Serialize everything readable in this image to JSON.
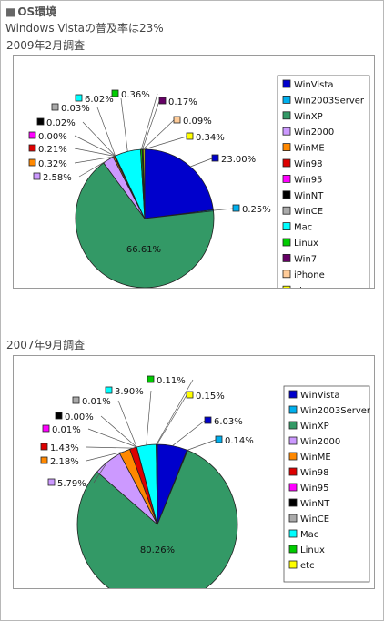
{
  "header": {
    "section_marker": "■",
    "section_title": "OS環境",
    "subtitle": "Windows Vistaの普及率は23%"
  },
  "chart_data": [
    {
      "type": "pie",
      "title": "2009年2月調査",
      "start_angle_deg": 0,
      "direction": "clockwise",
      "slices": [
        {
          "name": "WinVista",
          "value": 23.0,
          "label": "23.00%",
          "color": "#0000cc"
        },
        {
          "name": "Win2003Server",
          "value": 0.25,
          "label": "0.25%",
          "color": "#00b0ee"
        },
        {
          "name": "WinXP",
          "value": 66.61,
          "label": "66.61%",
          "color": "#339966"
        },
        {
          "name": "Win2000",
          "value": 2.58,
          "label": "2.58%",
          "color": "#cc99ff"
        },
        {
          "name": "WinME",
          "value": 0.32,
          "label": "0.32%",
          "color": "#ff8800"
        },
        {
          "name": "Win98",
          "value": 0.21,
          "label": "0.21%",
          "color": "#dd0000"
        },
        {
          "name": "Win95",
          "value": 0.0,
          "label": "0.00%",
          "color": "#ff00ff"
        },
        {
          "name": "WinNT",
          "value": 0.02,
          "label": "0.02%",
          "color": "#000000"
        },
        {
          "name": "WinCE",
          "value": 0.03,
          "label": "0.03%",
          "color": "#aaaaaa"
        },
        {
          "name": "Mac",
          "value": 6.02,
          "label": "6.02%",
          "color": "#00ffff"
        },
        {
          "name": "Linux",
          "value": 0.36,
          "label": "0.36%",
          "color": "#00cc00"
        },
        {
          "name": "Win7",
          "value": 0.17,
          "label": "0.17%",
          "color": "#660066"
        },
        {
          "name": "iPhone",
          "value": 0.09,
          "label": "0.09%",
          "color": "#ffcc99"
        },
        {
          "name": "etc",
          "value": 0.34,
          "label": "0.34%",
          "color": "#ffff00"
        }
      ],
      "legend": [
        "WinVista",
        "Win2003Server",
        "WinXP",
        "Win2000",
        "WinME",
        "Win98",
        "Win95",
        "WinNT",
        "WinCE",
        "Mac",
        "Linux",
        "Win7",
        "iPhone",
        "etc"
      ],
      "legend_position": "right"
    },
    {
      "type": "pie",
      "title": "2007年9月調査",
      "start_angle_deg": 0,
      "direction": "clockwise",
      "slices": [
        {
          "name": "WinVista",
          "value": 6.03,
          "label": "6.03%",
          "color": "#0000cc"
        },
        {
          "name": "Win2003Server",
          "value": 0.14,
          "label": "0.14%",
          "color": "#00b0ee"
        },
        {
          "name": "WinXP",
          "value": 80.26,
          "label": "80.26%",
          "color": "#339966"
        },
        {
          "name": "Win2000",
          "value": 5.79,
          "label": "5.79%",
          "color": "#cc99ff"
        },
        {
          "name": "WinME",
          "value": 2.18,
          "label": "2.18%",
          "color": "#ff8800"
        },
        {
          "name": "Win98",
          "value": 1.43,
          "label": "1.43%",
          "color": "#dd0000"
        },
        {
          "name": "Win95",
          "value": 0.01,
          "label": "0.01%",
          "color": "#ff00ff"
        },
        {
          "name": "WinNT",
          "value": 0.0,
          "label": "0.00%",
          "color": "#000000"
        },
        {
          "name": "WinCE",
          "value": 0.01,
          "label": "0.01%",
          "color": "#aaaaaa"
        },
        {
          "name": "Mac",
          "value": 3.9,
          "label": "3.90%",
          "color": "#00ffff"
        },
        {
          "name": "Linux",
          "value": 0.11,
          "label": "0.11%",
          "color": "#00cc00"
        },
        {
          "name": "etc",
          "value": 0.15,
          "label": "0.15%",
          "color": "#ffff00"
        }
      ],
      "legend": [
        "WinVista",
        "Win2003Server",
        "WinXP",
        "Win2000",
        "WinME",
        "Win98",
        "Win95",
        "WinNT",
        "WinCE",
        "Mac",
        "Linux",
        "etc"
      ],
      "legend_position": "right"
    }
  ]
}
